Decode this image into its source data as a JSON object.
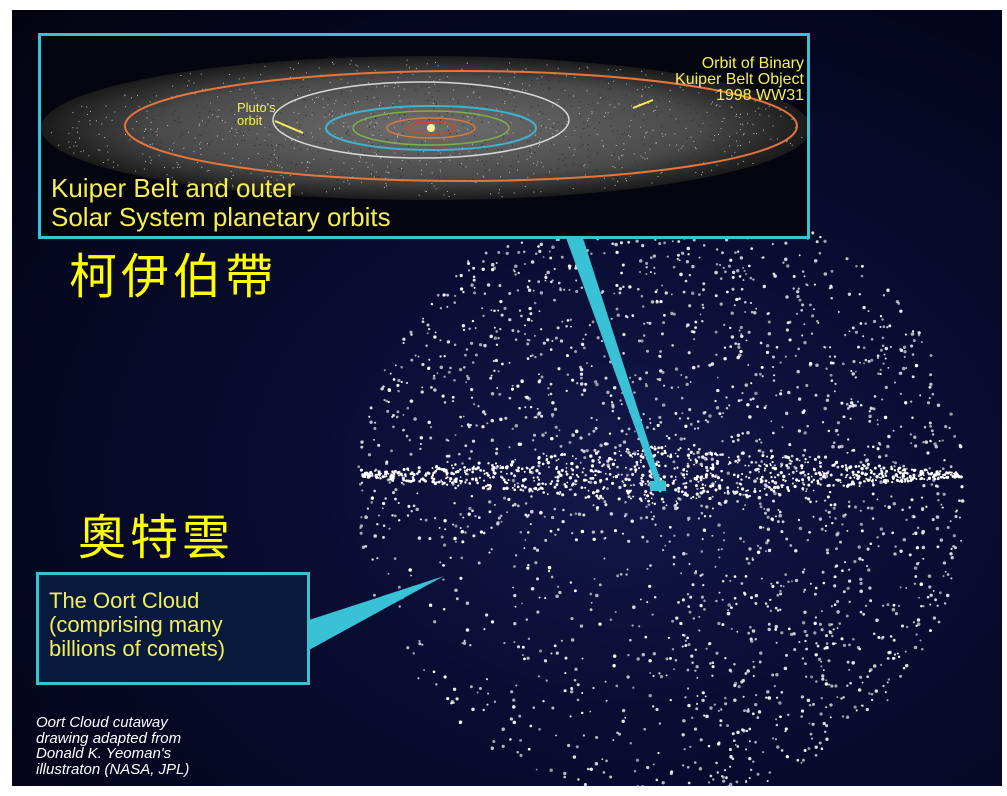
{
  "kuiper_inset": {
    "pluto_label": "Pluto's\norbit",
    "binary_label": "Orbit of Binary\nKuiper Belt Object\n1998 WW31",
    "caption": "Kuiper Belt and outer\nSolar System planetary orbits"
  },
  "kuiper_belt_chinese": "柯伊伯帶",
  "oort_cloud_chinese": "奧特雲",
  "oort_label": "The Oort Cloud\n(comprising many\nbillions of comets)",
  "credit": "Oort Cloud cutaway\ndrawing adapted from\nDonald K. Yeoman's\nillustraton (NASA, JPL)",
  "colors": {
    "background": "#0a0d33",
    "border_cyan": "#39c1d6",
    "label_yellow": "#f4ef55",
    "chinese_yellow": "#ffff00",
    "comet_white": "#ffffff"
  }
}
